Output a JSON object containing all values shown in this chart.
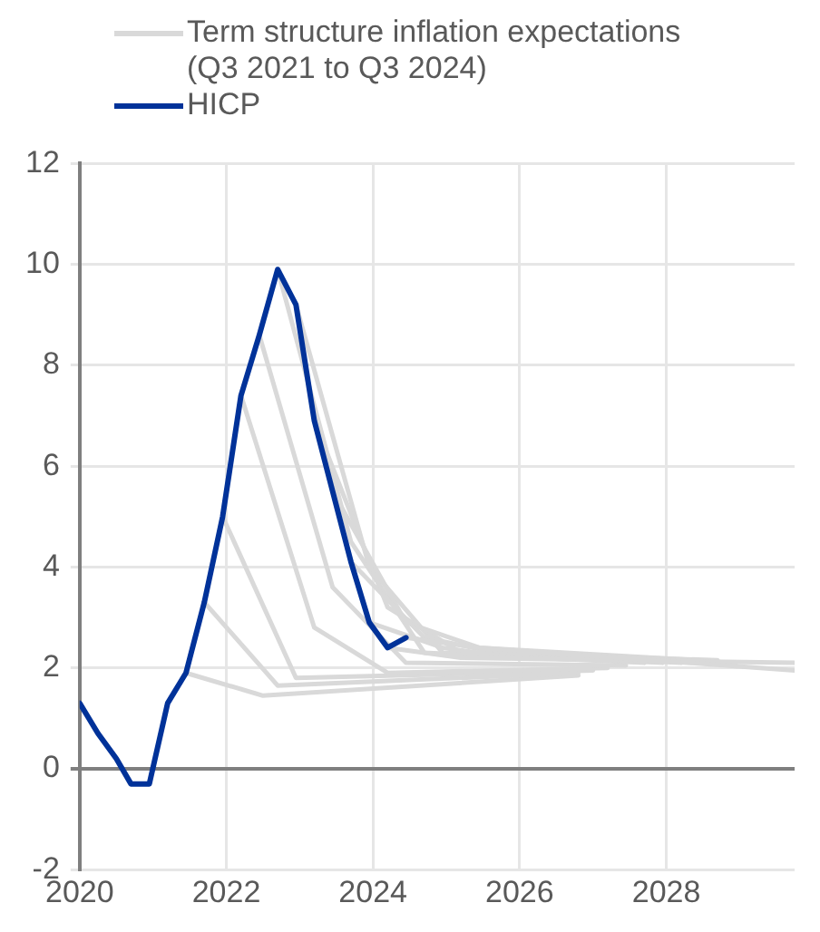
{
  "chart_data": {
    "type": "line",
    "xlim": [
      2020,
      2029.75
    ],
    "xticks": [
      2020,
      2022,
      2024,
      2026,
      2028
    ],
    "ylim": [
      -2,
      12
    ],
    "yticks": [
      -2,
      0,
      2,
      4,
      6,
      8,
      10,
      12
    ],
    "grid": true,
    "legend": "top left",
    "marker": "none",
    "line_style": "solid",
    "series": [
      {
        "name": "Term structure inflation expectations (Q3 2021 to Q3 2024)",
        "color": "#d9d9d9",
        "x": [
          2021.45,
          2022.5,
          2026.8
        ],
        "values": [
          1.9,
          1.45,
          1.85
        ]
      },
      {
        "color": "#d9d9d9",
        "x": [
          2021.7,
          2022.7,
          2026.8
        ],
        "values": [
          3.3,
          1.65,
          1.9
        ]
      },
      {
        "color": "#d9d9d9",
        "x": [
          2021.95,
          2022.95,
          2027
        ],
        "values": [
          5.0,
          1.8,
          1.95
        ]
      },
      {
        "color": "#d9d9d9",
        "x": [
          2022.2,
          2023.2,
          2024.2,
          2027.2
        ],
        "values": [
          7.4,
          2.8,
          1.9,
          2.0
        ]
      },
      {
        "color": "#d9d9d9",
        "x": [
          2022.45,
          2023.45,
          2024.45,
          2027.45
        ],
        "values": [
          8.6,
          3.6,
          2.1,
          2.05
        ]
      },
      {
        "color": "#d9d9d9",
        "x": [
          2022.7,
          2023.7,
          2024.7,
          2027.7
        ],
        "values": [
          9.9,
          4.5,
          2.3,
          2.1
        ]
      },
      {
        "color": "#d9d9d9",
        "x": [
          2022.95,
          2023.95,
          2024.95,
          2027.95
        ],
        "values": [
          9.2,
          4.0,
          2.3,
          2.1
        ]
      },
      {
        "color": "#d9d9d9",
        "x": [
          2023.2,
          2024.2,
          2025.2,
          2028.2
        ],
        "values": [
          6.9,
          3.2,
          2.3,
          2.1
        ]
      },
      {
        "color": "#d9d9d9",
        "x": [
          2023.45,
          2024.45,
          2025.45,
          2028.45
        ],
        "values": [
          5.5,
          2.9,
          2.4,
          2.15
        ]
      },
      {
        "color": "#d9d9d9",
        "x": [
          2023.7,
          2024.7,
          2025.7,
          2028.7
        ],
        "values": [
          4.1,
          2.6,
          2.3,
          2.15
        ]
      },
      {
        "color": "#d9d9d9",
        "x": [
          2023.95,
          2024.95,
          2025.95,
          2028.95
        ],
        "values": [
          2.9,
          2.4,
          2.2,
          2.1
        ]
      },
      {
        "color": "#d9d9d9",
        "x": [
          2024.2,
          2025.2,
          2029.75
        ],
        "values": [
          2.4,
          2.2,
          2.1
        ]
      },
      {
        "color": "#d9d9d9",
        "x": [
          2024.45,
          2025.45,
          2029.75
        ],
        "values": [
          2.6,
          2.4,
          1.95
        ]
      },
      {
        "name": "HICP",
        "color": "#003299",
        "x": [
          2020,
          2020.25,
          2020.5,
          2020.7,
          2020.95,
          2021.2,
          2021.45,
          2021.7,
          2021.95,
          2022.2,
          2022.45,
          2022.7,
          2022.95,
          2023.2,
          2023.45,
          2023.7,
          2023.95,
          2024.2,
          2024.45
        ],
        "values": [
          1.3,
          0.7,
          0.2,
          -0.3,
          -0.3,
          1.3,
          1.9,
          3.3,
          5.0,
          7.4,
          8.6,
          9.9,
          9.2,
          6.9,
          5.5,
          4.1,
          2.9,
          2.4,
          2.6
        ]
      }
    ]
  }
}
